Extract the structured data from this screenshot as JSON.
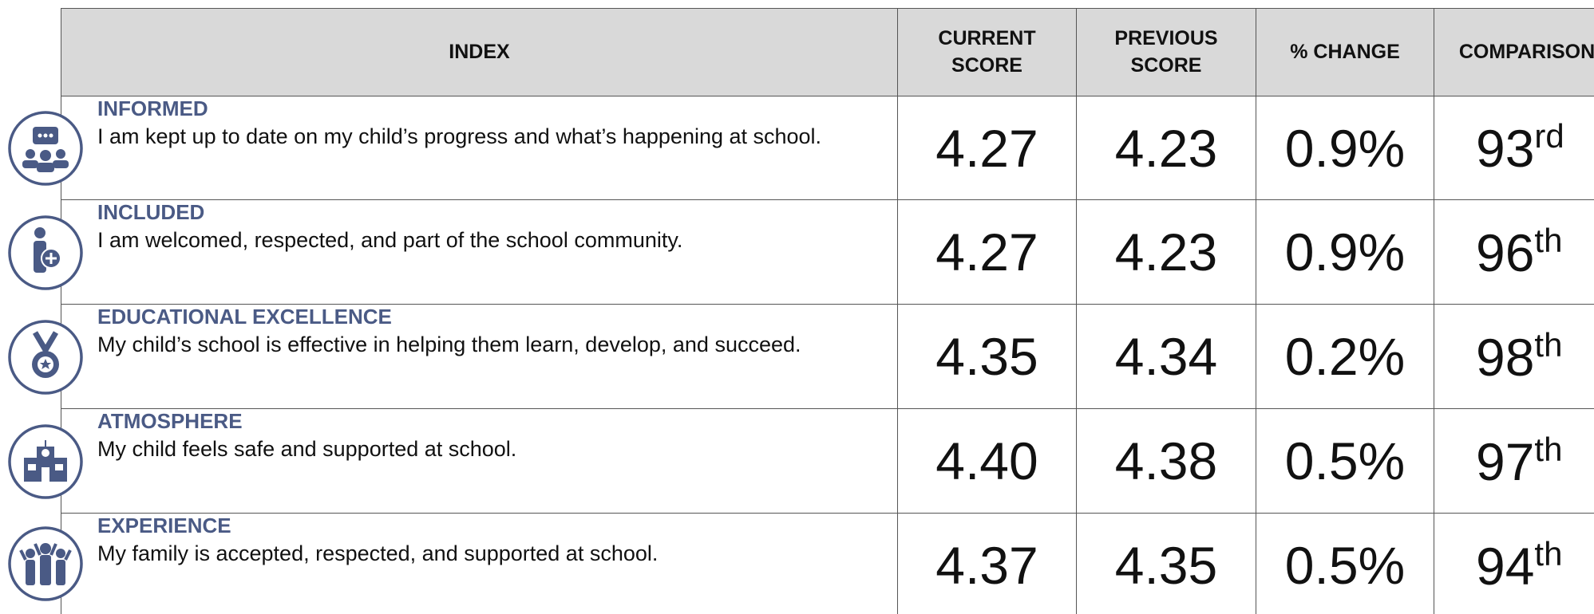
{
  "table": {
    "headers": [
      "INDEX",
      "CURRENT SCORE",
      "PREVIOUS SCORE",
      "% CHANGE",
      "COMPARISON"
    ],
    "rows": [
      {
        "title": "INFORMED",
        "description": "I am kept up to date on my child’s progress and what’s happening at school.",
        "current": "4.27",
        "previous": "4.23",
        "change": "0.9%",
        "rank": "93",
        "suffix": "rd"
      },
      {
        "title": "INCLUDED",
        "description": "I am welcomed, respected, and part of the school community.",
        "current": "4.27",
        "previous": "4.23",
        "change": "0.9%",
        "rank": "96",
        "suffix": "th"
      },
      {
        "title": "EDUCATIONAL EXCELLENCE",
        "description": "My child’s school is effective in helping them learn, develop, and succeed.",
        "current": "4.35",
        "previous": "4.34",
        "change": "0.2%",
        "rank": "98",
        "suffix": "th"
      },
      {
        "title": "ATMOSPHERE",
        "description": "My child feels safe and supported at school.",
        "current": "4.40",
        "previous": "4.38",
        "change": "0.5%",
        "rank": "97",
        "suffix": "th"
      },
      {
        "title": "EXPERIENCE",
        "description": "My family is accepted, respected, and supported at school.",
        "current": "4.37",
        "previous": "4.35",
        "change": "0.5%",
        "rank": "94",
        "suffix": "th"
      }
    ]
  }
}
